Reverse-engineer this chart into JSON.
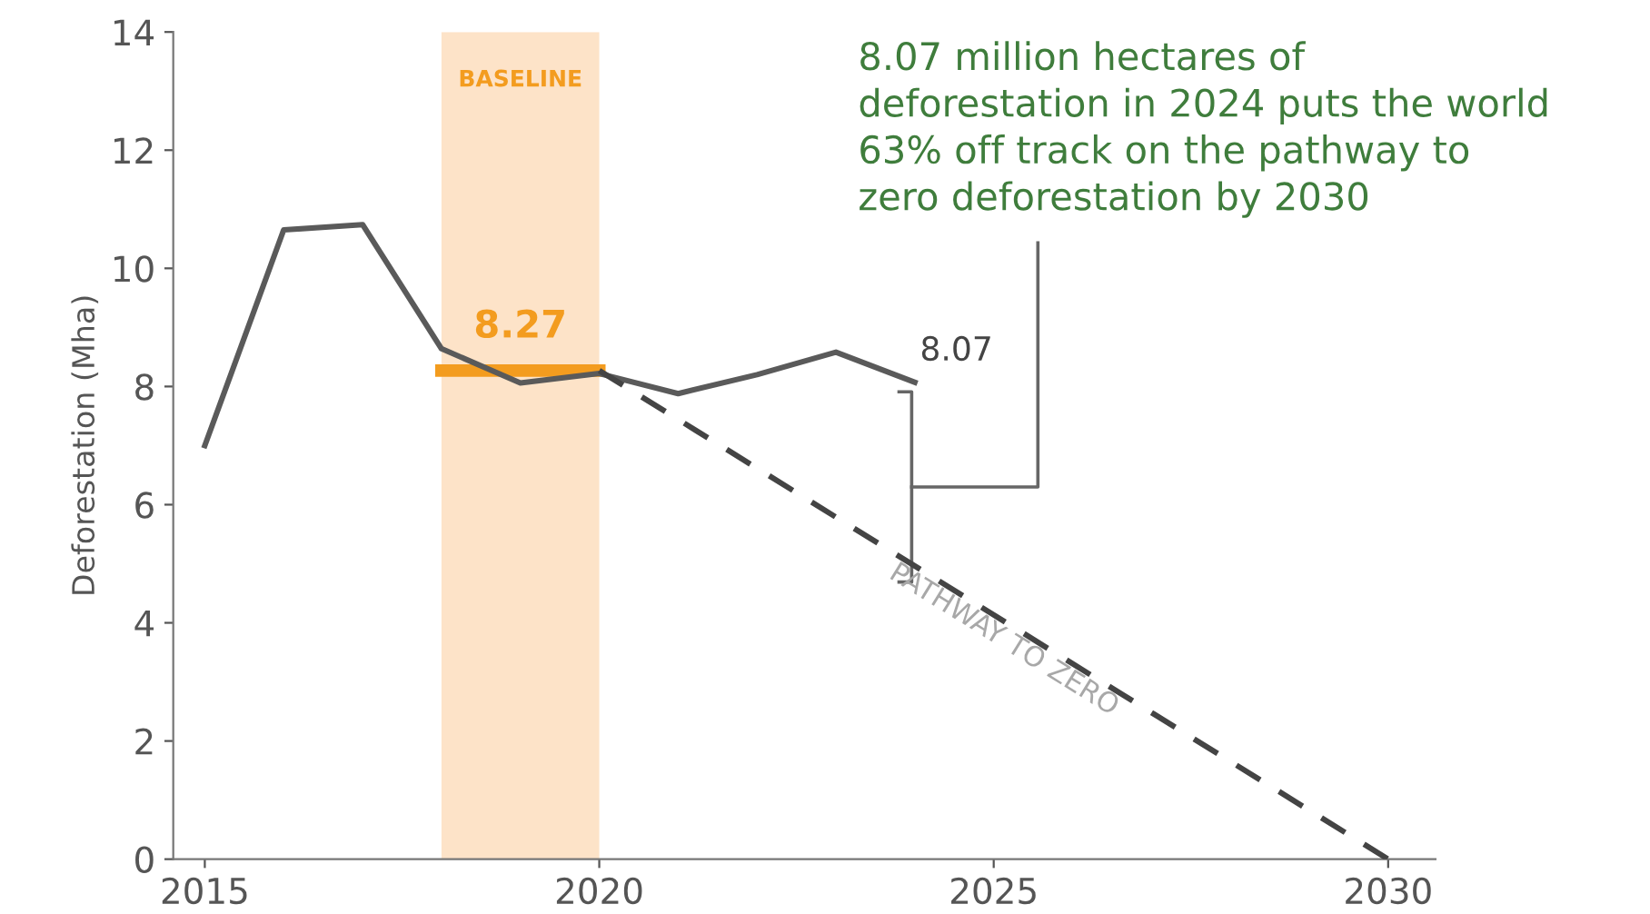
{
  "chart_data": {
    "type": "line",
    "ylabel": "Deforestation (Mha)",
    "series": [
      {
        "color": "#5a5a5a",
        "x": [
          2015,
          2016,
          2017,
          2018,
          2019,
          2020,
          2021,
          2022,
          2023,
          2024
        ],
        "values": [
          7.0,
          10.65,
          10.74,
          8.64,
          8.06,
          8.22,
          7.88,
          8.2,
          8.58,
          8.07
        ],
        "line_style": "solid"
      },
      {
        "color": "#444444",
        "x": [
          2020,
          2030
        ],
        "values": [
          8.27,
          0
        ],
        "line_style": "dashed"
      },
      {
        "color": "#f39c1f",
        "x": [
          2018,
          2020
        ],
        "values": [
          8.27,
          8.27
        ],
        "line_style": "solid"
      }
    ],
    "bands": [
      {
        "axis": "x",
        "from": 2018,
        "to": 2020,
        "label": "BASELINE",
        "color": "#fde3c8"
      }
    ],
    "annotations": [
      {
        "text": "8.27",
        "x": 2019,
        "y": 8.27
      },
      {
        "text": "8.07",
        "x": 2024,
        "y": 8.07
      },
      "PATHWAY TO ZERO",
      "8.07 million hectares of\ndeforestation in 2024 puts the world\n63% off track on the pathway to\nzero deforestation by 2030"
    ],
    "xlim": [
      2014.6,
      2030.6
    ],
    "ylim": [
      0,
      14
    ],
    "xticks": [
      2015,
      2020,
      2025,
      2030
    ],
    "yticks": [
      0,
      2,
      4,
      6,
      8,
      10,
      12,
      14
    ],
    "grid": false,
    "marker": "none"
  }
}
